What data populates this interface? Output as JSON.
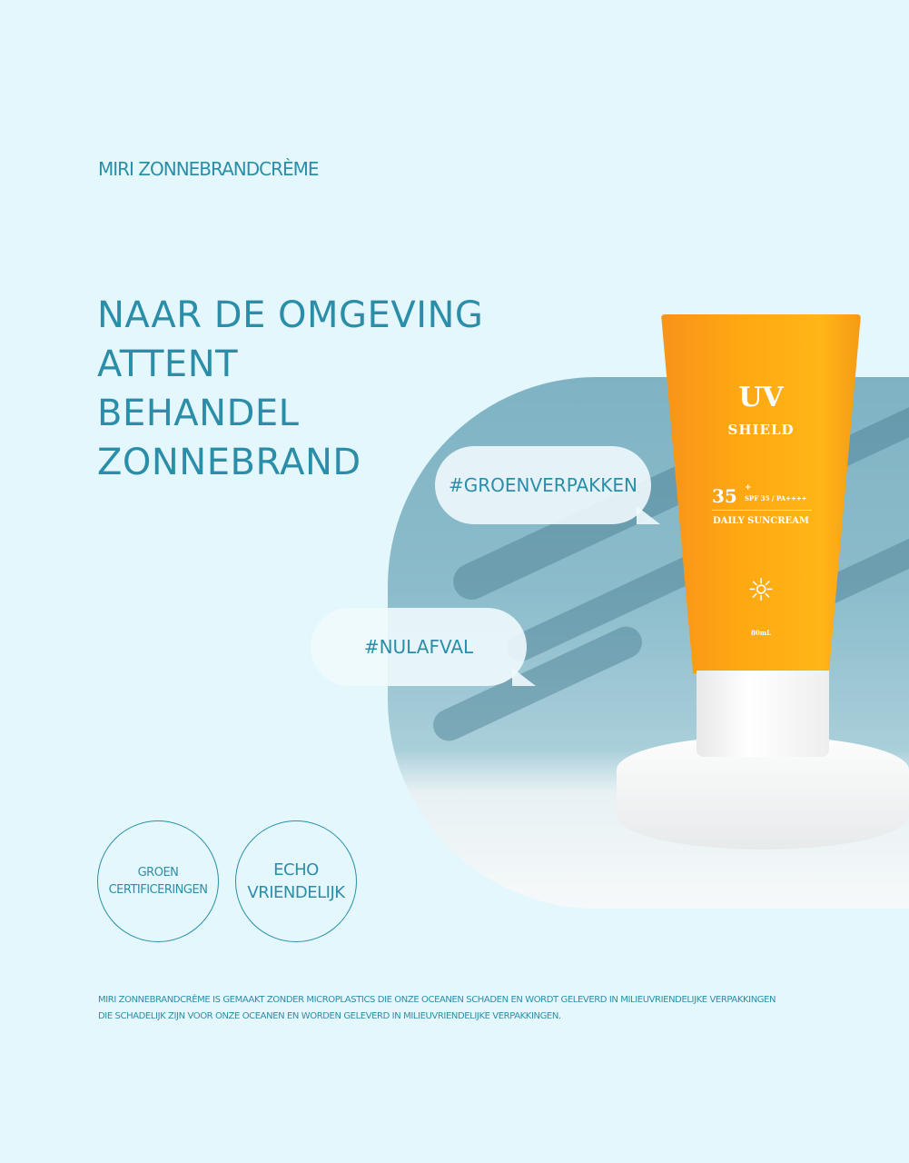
{
  "brand": "MIRI ZONNEBRANDCRÈME",
  "headline": [
    "NAAR DE OMGEVING",
    "ATTENT",
    "BEHANDEL",
    "ZONNEBRAND"
  ],
  "tags": [
    "#GROENVERPAKKEN",
    "#NULAFVAL"
  ],
  "badges": [
    {
      "lines": [
        "GROEN",
        "CERTIFICERINGEN"
      ]
    },
    {
      "lines": [
        "ECHO",
        "VRIENDELIJK"
      ]
    }
  ],
  "product": {
    "line1": "UV",
    "line2": "SHIELD",
    "spf_number": "35",
    "spf_plus": "+",
    "spf_text": "SPF 35 / PA++++",
    "name": "DAILY SUNCREAM",
    "volume": "80mL",
    "icon": "sun-icon"
  },
  "footer": [
    "MIRI ZONNEBRANDCRÈME IS GEMAAKT ZONDER MICROPLASTICS DIE ONZE OCEANEN SCHADEN EN WORDT GELEVERD IN MILIEUVRIENDELIJKE VERPAKKINGEN",
    "DIE SCHADELIJK ZIJN VOOR ONZE OCEANEN EN WORDEN GELEVERD IN MILIEUVRIENDELIJKE VERPAKKINGEN."
  ],
  "colors": {
    "background": "#e4f7fc",
    "text": "#2b8ea9",
    "tube": "#ffa812"
  }
}
